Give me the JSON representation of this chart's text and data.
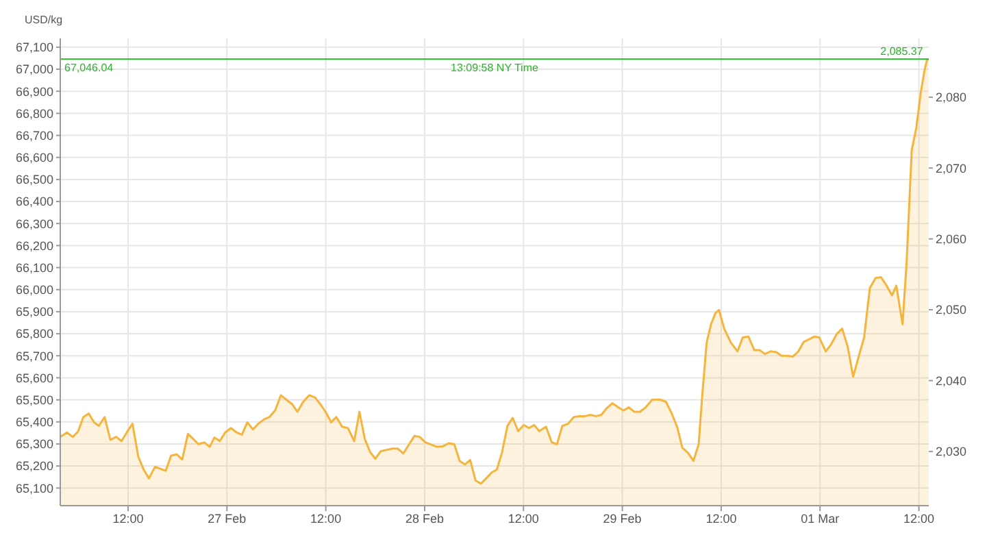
{
  "chart_data": {
    "type": "area",
    "ylabel": "USD/kg",
    "x": [
      "--02-26T03:46",
      "--02-26T04:35",
      "--02-26T05:17",
      "--02-26T05:55",
      "--02-26T06:34",
      "--02-26T07:13",
      "--02-26T07:52",
      "--02-26T08:27",
      "--02-26T09:09",
      "--02-26T09:51",
      "--02-26T10:33",
      "--02-26T11:12",
      "--02-26T11:50",
      "--02-26T12:32",
      "--02-26T13:14",
      "--02-26T13:53",
      "--02-26T14:32",
      "--02-26T15:17",
      "--02-26T15:56",
      "--02-26T16:34",
      "--02-26T17:13",
      "--02-26T17:55",
      "--02-26T18:34",
      "--02-26T19:16",
      "--02-26T19:54",
      "--02-26T20:33",
      "--02-26T21:15",
      "--02-26T21:54",
      "--02-26T22:29",
      "--02-26T23:08",
      "--02-26T23:47",
      "--02-27T00:29",
      "--02-27T01:11",
      "--02-27T01:49",
      "--02-27T02:28",
      "--02-27T03:10",
      "--02-27T03:49",
      "--02-27T04:31",
      "--02-27T05:09",
      "--02-27T05:51",
      "--02-27T06:33",
      "--02-27T07:12",
      "--02-27T07:54",
      "--02-27T08:33",
      "--02-27T09:15",
      "--02-27T10:00",
      "--02-27T10:42",
      "--02-27T11:24",
      "--02-27T12:02",
      "--02-27T12:39",
      "--02-27T13:17",
      "--02-27T13:59",
      "--02-27T14:41",
      "--02-27T15:27",
      "--02-27T16:05",
      "--02-27T16:44",
      "--02-27T17:23",
      "--02-27T18:01",
      "--02-27T18:40",
      "--02-27T19:22",
      "--02-27T20:04",
      "--02-27T20:43",
      "--02-27T21:25",
      "--02-27T22:07",
      "--02-27T22:45",
      "--02-27T23:24",
      "--02-28T00:06",
      "--02-28T00:48",
      "--02-28T01:30",
      "--02-28T02:12",
      "--02-28T02:54",
      "--02-28T03:36",
      "--02-28T04:15",
      "--02-28T04:53",
      "--02-28T05:32",
      "--02-28T06:11",
      "--02-28T06:49",
      "--02-28T07:28",
      "--02-28T08:07",
      "--02-28T08:46",
      "--02-28T09:24",
      "--02-28T10:03",
      "--02-28T10:42",
      "--02-28T11:21",
      "--02-28T12:02",
      "--02-28T12:41",
      "--02-28T13:17",
      "--02-28T13:55",
      "--02-28T14:44",
      "--02-28T15:26",
      "--02-28T16:04",
      "--02-28T16:43",
      "--02-28T17:25",
      "--02-28T18:07",
      "--02-28T18:46",
      "--02-28T19:28",
      "--02-28T20:07",
      "--02-28T20:48",
      "--02-28T21:27",
      "--02-28T22:06",
      "--02-28T22:48",
      "--02-28T23:30",
      "--02-29T00:09",
      "--02-29T00:47",
      "--02-29T01:26",
      "--02-29T02:08",
      "--02-29T02:50",
      "--02-29T03:38",
      "--02-29T04:36",
      "--02-29T05:18",
      "--02-29T05:57",
      "--02-29T06:39",
      "--02-29T07:17",
      "--02-29T07:59",
      "--02-29T08:38",
      "--02-29T09:16",
      "--02-29T09:42",
      "--02-29T10:14",
      "--02-29T10:46",
      "--02-29T11:18",
      "--02-29T11:44",
      "--02-29T12:22",
      "--02-29T13:11",
      "--02-29T13:59",
      "--02-29T14:37",
      "--02-29T15:19",
      "--02-29T16:01",
      "--02-29T16:40",
      "--02-29T17:18",
      "--02-29T18:00",
      "--02-29T18:42",
      "--02-29T19:20",
      "--02-29T19:59",
      "--02-29T20:41",
      "--02-29T21:22",
      "--02-29T22:01",
      "--02-29T22:40",
      "--02-29T23:18",
      "--02-29T23:54",
      "--03-01T00:42",
      "--03-01T01:20",
      "--03-01T02:02",
      "--03-01T02:41",
      "--03-01T03:22",
      "--03-01T04:01",
      "--03-01T04:43",
      "--03-01T05:21",
      "--03-01T06:03",
      "--03-01T06:45",
      "--03-01T07:23",
      "--03-01T08:05",
      "--03-01T08:44",
      "--03-01T09:16",
      "--03-01T10:01",
      "--03-01T10:30",
      "--03-01T11:08",
      "--03-01T11:41",
      "--03-01T12:13",
      "--03-01T12:40",
      "--03-01T12:58",
      "--03-01T13:10"
    ],
    "series": [
      {
        "color": "#f5b43c",
        "values": [
          65332,
          65352,
          65332,
          65356,
          65422,
          65438,
          65398,
          65382,
          65422,
          65319,
          65332,
          65313,
          65352,
          65392,
          65243,
          65184,
          65144,
          65197,
          65187,
          65178,
          65247,
          65253,
          65229,
          65346,
          65323,
          65299,
          65307,
          65287,
          65329,
          65313,
          65352,
          65372,
          65352,
          65342,
          65398,
          65366,
          65392,
          65412,
          65422,
          65452,
          65521,
          65501,
          65481,
          65446,
          65491,
          65521,
          65511,
          65477,
          65442,
          65398,
          65422,
          65378,
          65372,
          65313,
          65446,
          65323,
          65263,
          65233,
          65267,
          65273,
          65279,
          65279,
          65257,
          65299,
          65336,
          65332,
          65307,
          65297,
          65287,
          65289,
          65303,
          65299,
          65223,
          65207,
          65227,
          65134,
          65120,
          65144,
          65170,
          65184,
          65263,
          65382,
          65418,
          65358,
          65386,
          65372,
          65386,
          65358,
          65378,
          65307,
          65299,
          65382,
          65392,
          65422,
          65426,
          65426,
          65432,
          65426,
          65432,
          65462,
          65485,
          65466,
          65452,
          65466,
          65446,
          65446,
          65466,
          65501,
          65501,
          65491,
          65442,
          65378,
          65283,
          65259,
          65223,
          65299,
          65521,
          65759,
          65843,
          65894,
          65908,
          65823,
          65759,
          65720,
          65783,
          65787,
          65726,
          65726,
          65708,
          65720,
          65716,
          65700,
          65700,
          65696,
          65720,
          65763,
          65775,
          65787,
          65783,
          65720,
          65751,
          65799,
          65823,
          65740,
          65605,
          65700,
          65783,
          66008,
          66053,
          66057,
          66018,
          65974,
          66018,
          65843,
          66117,
          66633,
          66733,
          66891,
          66991,
          67040,
          67046
        ]
      }
    ],
    "xlim": [
      "--02-26T03:46",
      "--03-01T13:12"
    ],
    "xticks": [
      {
        "value": "--02-26T12:00",
        "label": "12:00"
      },
      {
        "value": "--02-27T00:00",
        "label": "27 Feb"
      },
      {
        "value": "--02-27T12:00",
        "label": "12:00"
      },
      {
        "value": "--02-28T00:00",
        "label": "28 Feb"
      },
      {
        "value": "--02-28T12:00",
        "label": "12:00"
      },
      {
        "value": "--02-29T00:00",
        "label": "29 Feb"
      },
      {
        "value": "--02-29T12:00",
        "label": "12:00"
      },
      {
        "value": "--03-01T00:00",
        "label": "01 Mar"
      },
      {
        "value": "--03-01T12:00",
        "label": "12:00"
      }
    ],
    "ylim": [
      65020,
      67140
    ],
    "yticks": [
      {
        "value": 65100,
        "label": "65,100"
      },
      {
        "value": 65200,
        "label": "65,200"
      },
      {
        "value": 65300,
        "label": "65,300"
      },
      {
        "value": 65400,
        "label": "65,400"
      },
      {
        "value": 65500,
        "label": "65,500"
      },
      {
        "value": 65600,
        "label": "65,600"
      },
      {
        "value": 65700,
        "label": "65,700"
      },
      {
        "value": 65800,
        "label": "65,800"
      },
      {
        "value": 65900,
        "label": "65,900"
      },
      {
        "value": 66000,
        "label": "66,000"
      },
      {
        "value": 66100,
        "label": "66,100"
      },
      {
        "value": 66200,
        "label": "66,200"
      },
      {
        "value": 66300,
        "label": "66,300"
      },
      {
        "value": 66400,
        "label": "66,400"
      },
      {
        "value": 66500,
        "label": "66,500"
      },
      {
        "value": 66600,
        "label": "66,600"
      },
      {
        "value": 66700,
        "label": "66,700"
      },
      {
        "value": 66800,
        "label": "66,800"
      },
      {
        "value": 66900,
        "label": "66,900"
      },
      {
        "value": 67000,
        "label": "67,000"
      },
      {
        "value": 67100,
        "label": "67,100"
      }
    ],
    "y2lim": [
      2022.35,
      2088.3
    ],
    "y2ticks": [
      {
        "value": 2030,
        "label": "2,030"
      },
      {
        "value": 2040,
        "label": "2,040"
      },
      {
        "value": 2050,
        "label": "2,050"
      },
      {
        "value": 2060,
        "label": "2,060"
      },
      {
        "value": 2070,
        "label": "2,070"
      },
      {
        "value": 2080,
        "label": "2,080"
      }
    ],
    "ref_lines": [
      {
        "axis": "y",
        "value": 67046.04,
        "label": "67,046.04",
        "color": "#2db52d"
      }
    ],
    "annotations": [
      "13:09:58 NY Time",
      {
        "text": "2,085.37",
        "x": "--03-01T13:10",
        "y": 67046
      }
    ],
    "grid": true
  }
}
